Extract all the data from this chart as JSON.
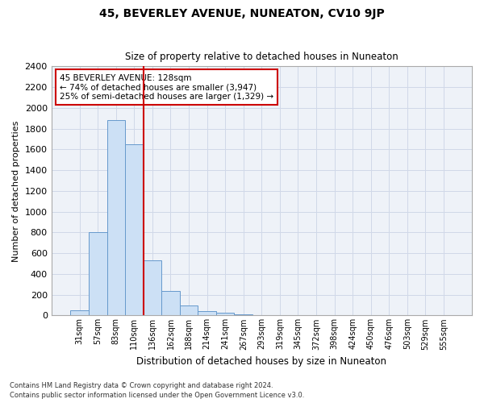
{
  "title": "45, BEVERLEY AVENUE, NUNEATON, CV10 9JP",
  "subtitle": "Size of property relative to detached houses in Nuneaton",
  "xlabel": "Distribution of detached houses by size in Nuneaton",
  "ylabel": "Number of detached properties",
  "categories": [
    "31sqm",
    "57sqm",
    "83sqm",
    "110sqm",
    "136sqm",
    "162sqm",
    "188sqm",
    "214sqm",
    "241sqm",
    "267sqm",
    "293sqm",
    "319sqm",
    "345sqm",
    "372sqm",
    "398sqm",
    "424sqm",
    "450sqm",
    "476sqm",
    "503sqm",
    "529sqm",
    "555sqm"
  ],
  "values": [
    50,
    800,
    1880,
    1650,
    530,
    235,
    100,
    45,
    25,
    10,
    2,
    0,
    0,
    0,
    0,
    0,
    0,
    0,
    0,
    0,
    0
  ],
  "bar_color": "#cce0f5",
  "bar_edge_color": "#6699cc",
  "vline_x_idx": 3.5,
  "vline_color": "#cc0000",
  "annotation_text": "45 BEVERLEY AVENUE: 128sqm\n← 74% of detached houses are smaller (3,947)\n25% of semi-detached houses are larger (1,329) →",
  "annotation_box_edgecolor": "#cc0000",
  "ylim": [
    0,
    2400
  ],
  "yticks": [
    0,
    200,
    400,
    600,
    800,
    1000,
    1200,
    1400,
    1600,
    1800,
    2000,
    2200,
    2400
  ],
  "grid_color": "#d0d8e8",
  "bg_color": "#eef2f8",
  "footer_line1": "Contains HM Land Registry data © Crown copyright and database right 2024.",
  "footer_line2": "Contains public sector information licensed under the Open Government Licence v3.0."
}
